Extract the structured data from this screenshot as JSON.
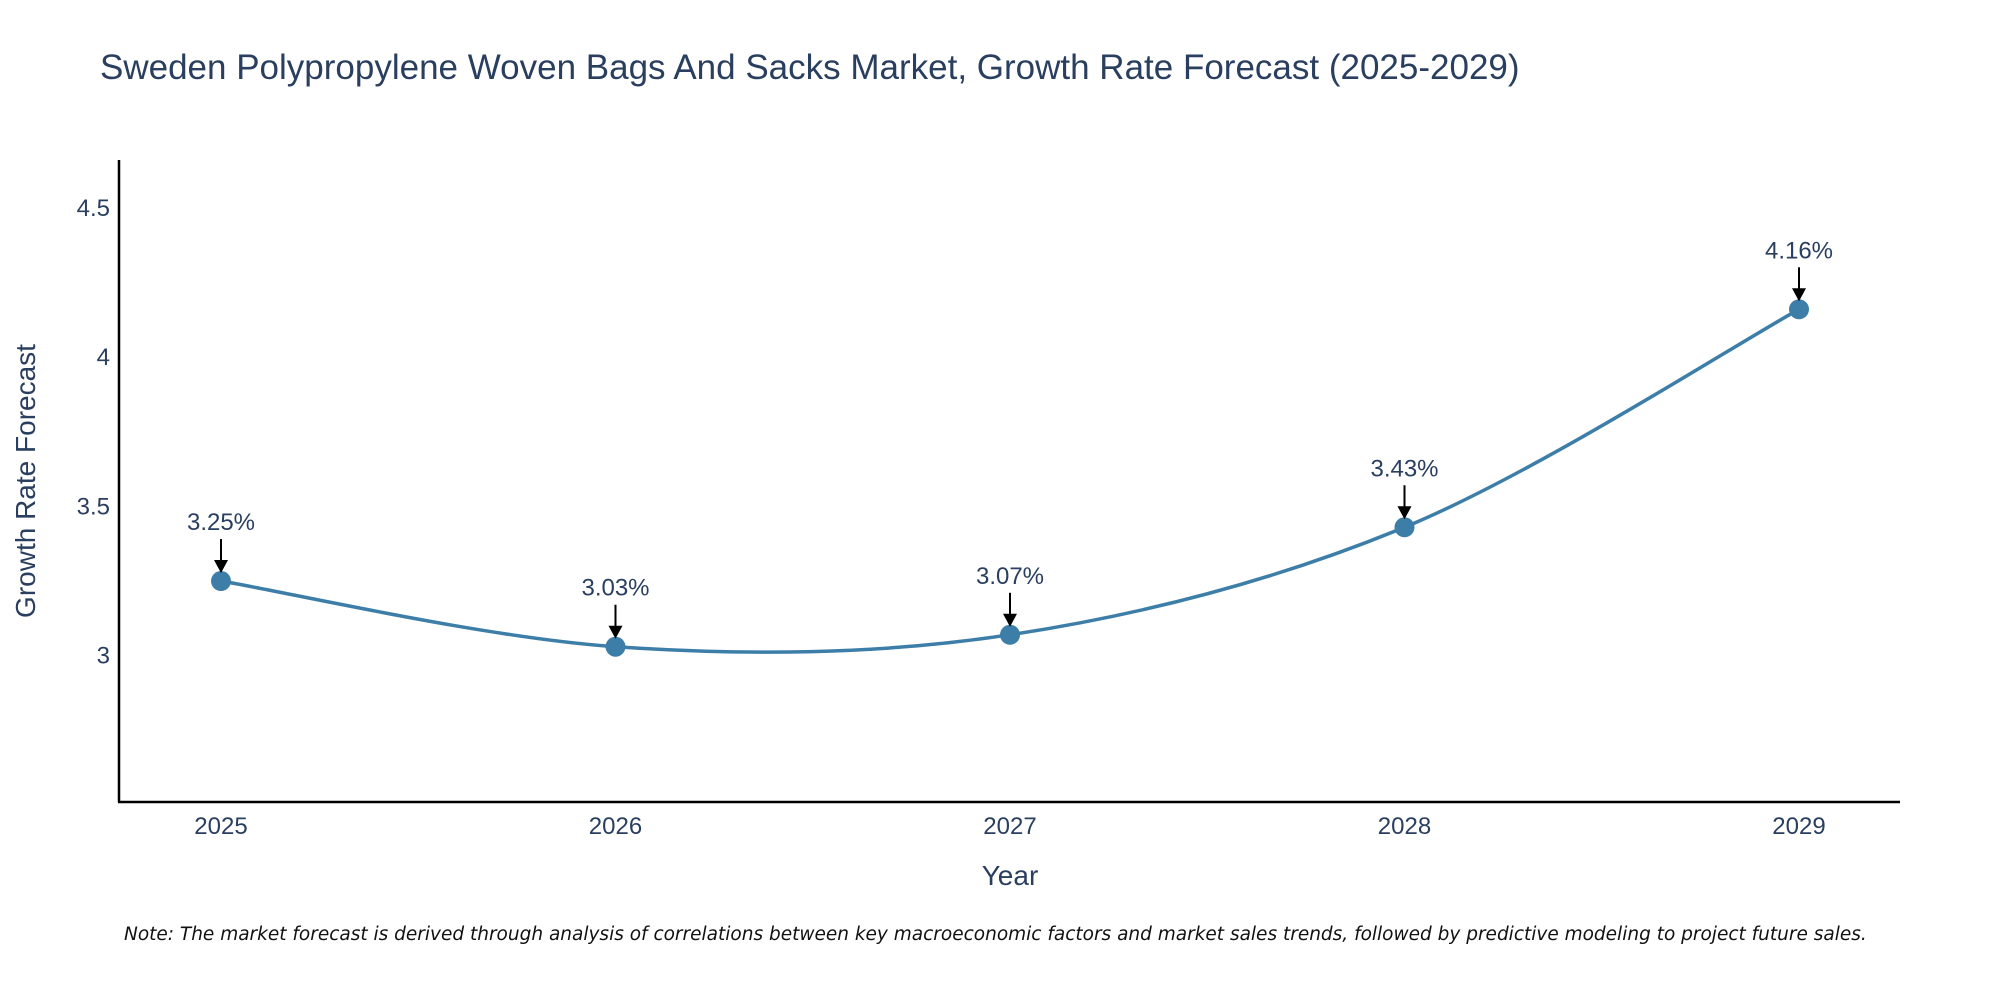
{
  "chart_data": {
    "type": "line",
    "title": "Sweden Polypropylene Woven Bags And Sacks Market, Growth Rate Forecast (2025-2029)",
    "xlabel": "Year",
    "ylabel": "Growth Rate Forecast",
    "x": [
      "2025",
      "2026",
      "2027",
      "2028",
      "2029"
    ],
    "series": [
      {
        "name": "Growth Rate Forecast",
        "values": [
          3.25,
          3.03,
          3.07,
          3.43,
          4.16
        ],
        "labels": [
          "3.25%",
          "3.03%",
          "3.07%",
          "3.43%",
          "4.16%"
        ],
        "color": "#3d7ea8"
      }
    ],
    "ylim": [
      2.51,
      4.66
    ],
    "yticks": [
      3,
      3.5,
      4,
      4.5
    ],
    "ytick_labels": [
      "3",
      "3.5",
      "4",
      "4.5"
    ],
    "grid": false,
    "line_shape": "spline",
    "note": "Note: The market forecast is derived through analysis of correlations between key macroeconomic factors and market sales trends, followed by predictive modeling to project future sales."
  }
}
